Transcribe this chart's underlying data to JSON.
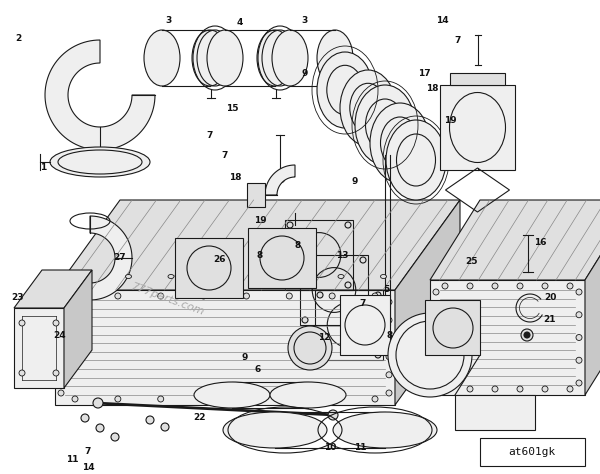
{
  "bg_color": "#ffffff",
  "fig_width": 6.0,
  "fig_height": 4.74,
  "dpi": 100,
  "watermark": "777parts.com",
  "part_code": "at601gk",
  "line_color": "#1a1a1a",
  "gray1": "#c8c8c8",
  "gray2": "#e0e0e0",
  "gray3": "#efefef"
}
